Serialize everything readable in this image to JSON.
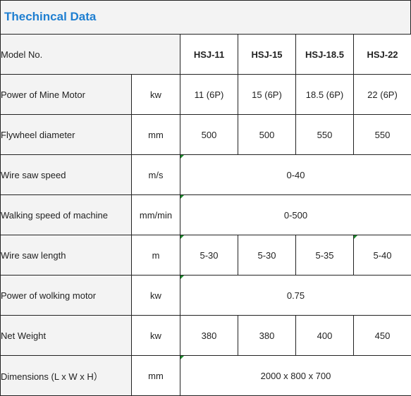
{
  "title": "Thechincal Data",
  "header": {
    "label": "Model No.",
    "models": [
      "HSJ-11",
      "HSJ-15",
      "HSJ-18.5",
      "HSJ-22"
    ]
  },
  "rows": [
    {
      "label": "Power of Mine Motor",
      "unit": "kw",
      "values": [
        "11 (6P)",
        "15 (6P)",
        "18.5 (6P)",
        "22 (6P)"
      ]
    },
    {
      "label": "Flywheel diameter",
      "unit": "mm",
      "values": [
        "500",
        "500",
        "550",
        "550"
      ]
    },
    {
      "label": "Wire saw speed",
      "unit": "m/s",
      "merged": "0-40"
    },
    {
      "label": "Walking speed of machine",
      "unit": "mm/min",
      "merged": "0-500"
    },
    {
      "label": "Wire saw length",
      "unit": "m",
      "values": [
        "5-30",
        "5-30",
        "5-35",
        "5-40"
      ]
    },
    {
      "label": "Power of wolking motor",
      "unit": "kw",
      "merged": "0.75"
    },
    {
      "label": "Net Weight",
      "unit": "kw",
      "values": [
        "380",
        "380",
        "400",
        "450"
      ]
    },
    {
      "label": "Dimensions (L x W x H）",
      "unit": "mm",
      "merged": "2000 x 800 x 700"
    }
  ]
}
